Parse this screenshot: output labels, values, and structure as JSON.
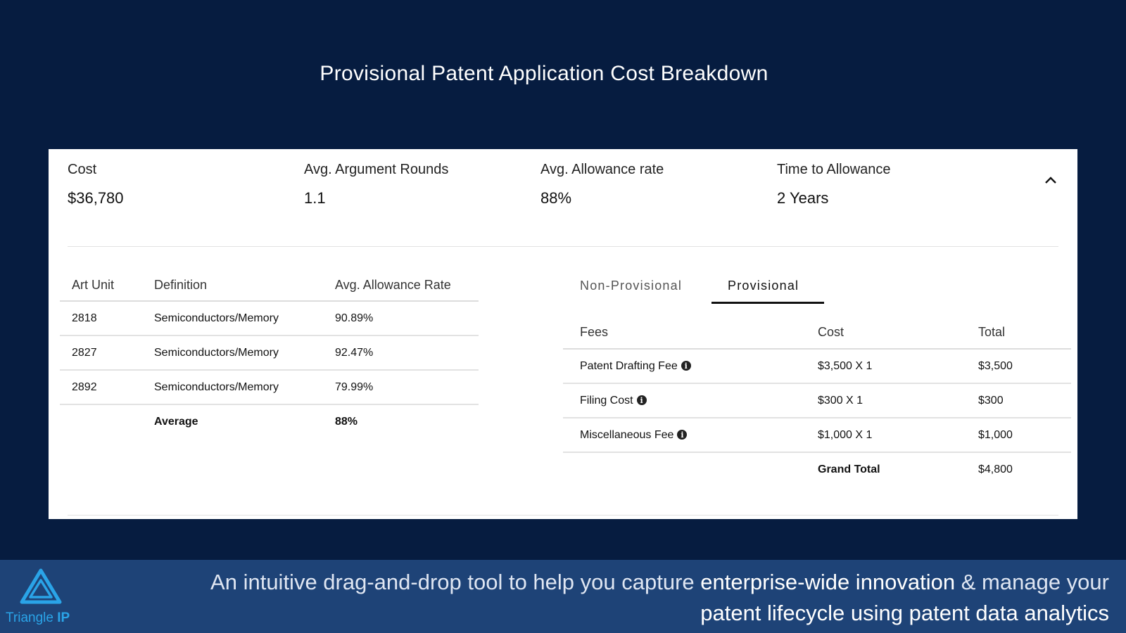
{
  "page_title": "Provisional Patent Application Cost Breakdown",
  "summary": [
    {
      "label": "Cost",
      "value": "$36,780"
    },
    {
      "label": "Avg. Argument Rounds",
      "value": "1.1"
    },
    {
      "label": "Avg. Allowance rate",
      "value": "88%"
    },
    {
      "label": "Time to Allowance",
      "value": "2 Years"
    }
  ],
  "art_table": {
    "headers": [
      "Art Unit",
      "Definition",
      "Avg. Allowance Rate"
    ],
    "rows": [
      [
        "2818",
        "Semiconductors/Memory",
        "90.89%"
      ],
      [
        "2827",
        "Semiconductors/Memory",
        "92.47%"
      ],
      [
        "2892",
        "Semiconductors/Memory",
        "79.99%"
      ]
    ],
    "average_label": "Average",
    "average_value": "88%"
  },
  "tabs": [
    "Non-Provisional",
    "Provisional"
  ],
  "active_tab": "Provisional",
  "fee_table": {
    "headers": [
      "Fees",
      "Cost",
      "Total"
    ],
    "rows": [
      [
        "Patent Drafting Fee",
        "$3,500 X 1",
        "$3,500"
      ],
      [
        "Filing Cost",
        "$300 X 1",
        "$300"
      ],
      [
        "Miscellaneous Fee",
        "$1,000 X 1",
        "$1,000"
      ]
    ],
    "grand_total_label": "Grand Total",
    "grand_total_value": "$4,800"
  },
  "footer": {
    "logo_name": "Triangle",
    "logo_suffix": "IP",
    "tagline": {
      "part1": "An intuitive drag-and-drop tool to help you capture ",
      "highlight1": "enterprise-wide innovation",
      "part2": " & manage your ",
      "highlight2": "patent lifecycle using patent data analytics"
    }
  },
  "colors": {
    "background": "#061c40",
    "footer": "#1e4377",
    "logo_accent": "#2aa4e8"
  },
  "icons": [
    "chevron-up-icon",
    "info-icon",
    "triangle-logo-icon"
  ]
}
